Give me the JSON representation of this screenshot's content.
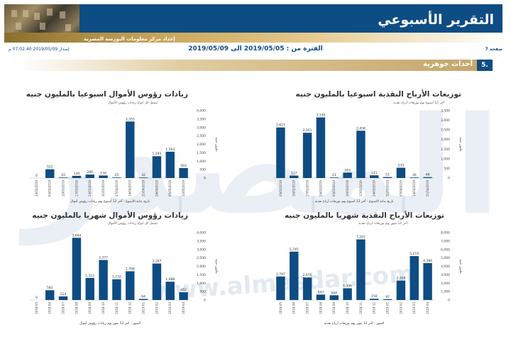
{
  "header": {
    "title": "التقرير الأسبوعي",
    "subtitle": "إعداد مركز معلومات البورصة المصرية"
  },
  "meta": {
    "page": "صفحة 7",
    "period": "الفترة من : 2019/05/05 الى 2019/05/09",
    "issued": "إصدار 2019/05/09 07:02:40 م"
  },
  "section": {
    "number": "5.",
    "title": "أحداث جوهرية"
  },
  "watermark": {
    "text": "المصدر",
    "url": "www.almasdar.com"
  },
  "colors": {
    "bar": "#0e4c84",
    "header": "#0e4c84",
    "gold": "#c4a469"
  },
  "chart_data": [
    {
      "type": "bar",
      "title": "توزيعات الأرباح النقدية اسبوعيا بالمليون جنيه",
      "subtitle": "آخر 12 أسبوع بهم توزيعات أرباح نقدية",
      "xlabel": "تاريخ بداية الاسبوع - آخر 12 اسبوع بهم توزيعات أرباح نقدية",
      "ylabel": "مليون جنيه",
      "ylim": [
        0,
        3500
      ],
      "yticks": [
        "0",
        "500",
        "1,000",
        "1,500",
        "2,000",
        "2,500",
        "3,000",
        "3,500"
      ],
      "categories": [
        "03/02/2019",
        "10/02/2019",
        "17/02/2019",
        "24/02/2019",
        "03/03/2019",
        "10/03/2019",
        "17/03/2019",
        "24/03/2019",
        "31/03/2019",
        "07/04/2019",
        "14/04/2019",
        "21/04/2019"
      ],
      "values": [
        2627,
        127,
        2351,
        3149,
        23,
        283,
        2458,
        141,
        51,
        535,
        30,
        48
      ],
      "labels": [
        "2,627",
        "127",
        "2,351",
        "3,149",
        "23",
        "283",
        "2,458",
        "141",
        "51",
        "535",
        "30",
        "48"
      ]
    },
    {
      "type": "bar",
      "title": "زيادات رؤوس الأموال اسبوعيا بالمليون جنيه",
      "subtitle": "تشمل كل انواع زيادات رؤوس الأموال",
      "xlabel": "تاريخ بداية الأسبوع - آخر 12 أسبوع بهم زيادات رؤوس أموال",
      "ylabel": "مليون جنيه",
      "ylim": [
        0,
        4000
      ],
      "yticks": [
        "0",
        "500",
        "1,000",
        "1,500",
        "2,000",
        "2,500",
        "3,000",
        "3,500",
        "4,000"
      ],
      "categories": [
        "24/02/2019",
        "03/03/2019",
        "10/03/2019",
        "17/03/2019",
        "24/03/2019",
        "31/03/2019",
        "07/04/2019",
        "14/04/2019",
        "21/04/2019",
        "28/04/2019",
        "05/05/2019",
        "12/05/2019"
      ],
      "values": [
        0,
        521,
        10,
        130,
        206,
        150,
        25,
        3355,
        32,
        1295,
        1563,
        593
      ],
      "labels": [
        "0",
        "521",
        "10",
        "130",
        "206",
        "150",
        "25",
        "3,355",
        "32",
        "1,295",
        "1,563",
        "593"
      ]
    },
    {
      "type": "bar",
      "title": "توزيعات الأرباح النقدية شهريا بالمليون جنيه",
      "subtitle": "آخر 12 شهر بهم توزيعات أرباح نقدية",
      "xlabel": "الشهر - آخر 12 شهر بهم توزيعات أرباح نقدية",
      "ylabel": "مليون جنيه",
      "ylim": [
        0,
        8000
      ],
      "yticks": [
        "0",
        "1,000",
        "2,000",
        "3,000",
        "4,000",
        "5,000",
        "6,000",
        "7,000",
        "8,000"
      ],
      "categories": [
        "2018-05",
        "2018-06",
        "2018-07",
        "2018-08",
        "2018-09",
        "2018-10",
        "2018-11",
        "2018-12",
        "2019-01",
        "2019-02",
        "2019-03",
        "2019-04"
      ],
      "values": [
        2797,
        5745,
        2676,
        643,
        564,
        1396,
        7201,
        150,
        97,
        2308,
        5215,
        4384
      ],
      "labels": [
        "2,797",
        "5,745",
        "2,676",
        "643",
        "564",
        "1,396",
        "7,201",
        "150",
        "97",
        "2,308",
        "5,215",
        "4,384"
      ]
    },
    {
      "type": "bar",
      "title": "زيادات رؤوس الأموال شهريا بالمليون جنيه",
      "subtitle": "تشمل كل انواع زيادات رؤوس الأموال",
      "xlabel": "الشهر - آخر 12 شهر بهم زيادات رؤوس أموال",
      "ylabel": "مليون جنيه",
      "ylim": [
        0,
        4000
      ],
      "yticks": [
        "0",
        "500",
        "1,000",
        "1,500",
        "2,000",
        "2,500",
        "3,000",
        "3,500",
        "4,000"
      ],
      "categories": [
        "2018-05",
        "2018-06",
        "2018-07",
        "2018-08",
        "2018-09",
        "2018-10",
        "2018-11",
        "2018-12",
        "2019-01",
        "2019-02",
        "2019-03",
        "2019-04"
      ],
      "values": [
        0,
        581,
        214,
        3694,
        1311,
        2377,
        1232,
        1708,
        64,
        2167,
        1088,
        462
      ],
      "labels": [
        "0",
        "581",
        "214",
        "3,694",
        "1,311",
        "2,377",
        "1,232",
        "1,708",
        "64",
        "2,167",
        "1,088",
        "462"
      ]
    }
  ]
}
